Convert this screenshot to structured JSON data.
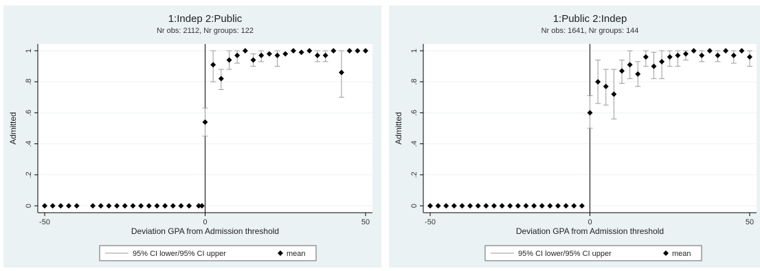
{
  "chart_data": [
    {
      "type": "scatter",
      "title": "1:Indep 2:Public",
      "subtitle": "Nr obs: 2112, Nr groups: 122",
      "xlabel": "Deviation GPA from Admission threshold",
      "ylabel": "Admitted",
      "xlim": [
        -50,
        50
      ],
      "ylim": [
        0,
        1
      ],
      "xticks": [
        -50,
        0,
        50
      ],
      "yticks": [
        0,
        0.2,
        0.4,
        0.6,
        0.8,
        1
      ],
      "ytick_labels": [
        "0",
        ".2",
        ".4",
        ".6",
        ".8",
        "1"
      ],
      "xtick_labels": [
        "-50",
        "0",
        "50"
      ],
      "threshold_line_x": 0,
      "grid": true,
      "legend_position": "bottom",
      "legend": [
        "95% CI lower/95% CI upper",
        "mean"
      ],
      "mean": [
        [
          -50,
          0
        ],
        [
          -47.5,
          0
        ],
        [
          -45,
          0
        ],
        [
          -42.5,
          0
        ],
        [
          -40,
          0
        ],
        [
          -35,
          0
        ],
        [
          -32.5,
          0
        ],
        [
          -30,
          0
        ],
        [
          -27.5,
          0
        ],
        [
          -25,
          0
        ],
        [
          -22.5,
          0
        ],
        [
          -20,
          0
        ],
        [
          -17.5,
          0
        ],
        [
          -15,
          0
        ],
        [
          -12.5,
          0
        ],
        [
          -10,
          0
        ],
        [
          -7.5,
          0
        ],
        [
          -5,
          0
        ],
        [
          -2,
          0
        ],
        [
          -1,
          0
        ],
        [
          0,
          0.54
        ],
        [
          2.5,
          0.91
        ],
        [
          5,
          0.82
        ],
        [
          7.5,
          0.94
        ],
        [
          10,
          0.97
        ],
        [
          12.5,
          1.0
        ],
        [
          15,
          0.94
        ],
        [
          17.5,
          0.97
        ],
        [
          20,
          0.98
        ],
        [
          22.5,
          0.97
        ],
        [
          25,
          0.98
        ],
        [
          27.5,
          1.0
        ],
        [
          30,
          0.99
        ],
        [
          32.5,
          1.0
        ],
        [
          35,
          0.97
        ],
        [
          37.5,
          0.97
        ],
        [
          40,
          1.0
        ],
        [
          42.5,
          0.86
        ],
        [
          45,
          1.0
        ],
        [
          47.5,
          1.0
        ],
        [
          50,
          1.0
        ]
      ],
      "ci": [
        [
          0,
          0.45,
          0.63
        ],
        [
          2.5,
          0.8,
          1.0
        ],
        [
          5,
          0.75,
          0.88
        ],
        [
          7.5,
          0.88,
          1.0
        ],
        [
          10,
          0.92,
          1.0
        ],
        [
          15,
          0.9,
          0.98
        ],
        [
          17.5,
          0.93,
          1.0
        ],
        [
          22.5,
          0.9,
          1.0
        ],
        [
          35,
          0.93,
          1.0
        ],
        [
          37.5,
          0.93,
          1.0
        ],
        [
          42.5,
          0.7,
          1.0
        ]
      ]
    },
    {
      "type": "scatter",
      "title": "1:Public 2:Indep",
      "subtitle": "Nr obs: 1641, Nr groups: 144",
      "xlabel": "Deviation GPA from Admission threshold",
      "ylabel": "Admitted",
      "xlim": [
        -50,
        50
      ],
      "ylim": [
        0,
        1
      ],
      "xticks": [
        -50,
        0,
        50
      ],
      "yticks": [
        0,
        0.2,
        0.4,
        0.6,
        0.8,
        1
      ],
      "ytick_labels": [
        "0",
        ".2",
        ".4",
        ".6",
        ".8",
        "1"
      ],
      "xtick_labels": [
        "-50",
        "0",
        "50"
      ],
      "threshold_line_x": 0,
      "grid": true,
      "legend_position": "bottom",
      "legend": [
        "95% CI lower/95% CI upper",
        "mean"
      ],
      "mean": [
        [
          -50,
          0
        ],
        [
          -47.5,
          0
        ],
        [
          -45,
          0
        ],
        [
          -42.5,
          0
        ],
        [
          -40,
          0
        ],
        [
          -37.5,
          0
        ],
        [
          -35,
          0
        ],
        [
          -32.5,
          0
        ],
        [
          -30,
          0
        ],
        [
          -27.5,
          0
        ],
        [
          -25,
          0
        ],
        [
          -22.5,
          0
        ],
        [
          -20,
          0
        ],
        [
          -17.5,
          0
        ],
        [
          -15,
          0
        ],
        [
          -12.5,
          0
        ],
        [
          -10,
          0
        ],
        [
          -7.5,
          0
        ],
        [
          -5,
          0
        ],
        [
          -2.5,
          0
        ],
        [
          0,
          0.6
        ],
        [
          2.5,
          0.8
        ],
        [
          5,
          0.77
        ],
        [
          7.5,
          0.72
        ],
        [
          10,
          0.87
        ],
        [
          12.5,
          0.91
        ],
        [
          15,
          0.85
        ],
        [
          17.5,
          0.96
        ],
        [
          20,
          0.9
        ],
        [
          22.5,
          0.93
        ],
        [
          25,
          0.96
        ],
        [
          27.5,
          0.97
        ],
        [
          30,
          0.98
        ],
        [
          32.5,
          1.0
        ],
        [
          35,
          0.97
        ],
        [
          37.5,
          1.0
        ],
        [
          40,
          0.97
        ],
        [
          42.5,
          1.0
        ],
        [
          45,
          0.97
        ],
        [
          47.5,
          1.0
        ],
        [
          50,
          0.96
        ]
      ],
      "ci": [
        [
          0,
          0.5,
          0.71
        ],
        [
          2.5,
          0.66,
          0.94
        ],
        [
          5,
          0.65,
          0.88
        ],
        [
          7.5,
          0.56,
          0.88
        ],
        [
          10,
          0.79,
          0.94
        ],
        [
          12.5,
          0.82,
          1.0
        ],
        [
          15,
          0.77,
          0.93
        ],
        [
          17.5,
          0.9,
          1.0
        ],
        [
          20,
          0.82,
          0.99
        ],
        [
          22.5,
          0.82,
          1.0
        ],
        [
          25,
          0.9,
          1.0
        ],
        [
          27.5,
          0.9,
          1.0
        ],
        [
          30,
          0.94,
          1.0
        ],
        [
          35,
          0.93,
          1.0
        ],
        [
          40,
          0.93,
          1.0
        ],
        [
          45,
          0.92,
          1.0
        ],
        [
          50,
          0.9,
          1.0
        ]
      ]
    }
  ]
}
